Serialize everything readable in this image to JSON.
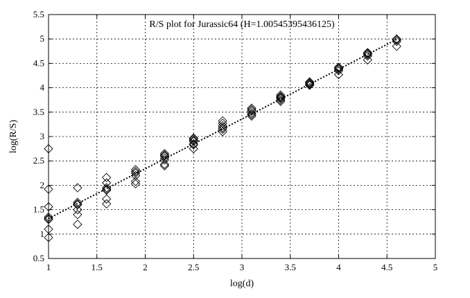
{
  "chart_data": {
    "type": "scatter",
    "title": "R/S plot for Jurassic64 (H=1.00545395436125)",
    "xlabel": "log(d)",
    "ylabel": "log(R/S)",
    "xlim": [
      1,
      5
    ],
    "ylim": [
      0.5,
      5.5
    ],
    "xticks": [
      1,
      1.5,
      2,
      2.5,
      3,
      3.5,
      4,
      4.5,
      5
    ],
    "yticks": [
      0.5,
      1,
      1.5,
      2,
      2.5,
      3,
      3.5,
      4,
      4.5,
      5,
      5.5
    ],
    "grid": true,
    "legend": "none",
    "colors": {
      "marker": "#000000",
      "line": "#000000",
      "grid": "#000000"
    },
    "series": [
      {
        "marker": "diamond-open",
        "points": [
          [
            1.0,
            2.75
          ],
          [
            1.0,
            1.92
          ],
          [
            1.0,
            1.56
          ],
          [
            1.0,
            1.35
          ],
          [
            1.0,
            1.32
          ],
          [
            1.0,
            1.3
          ],
          [
            1.0,
            1.1
          ],
          [
            1.0,
            0.93
          ],
          [
            1.3,
            1.95
          ],
          [
            1.3,
            1.65
          ],
          [
            1.3,
            1.62
          ],
          [
            1.3,
            1.6
          ],
          [
            1.3,
            1.5
          ],
          [
            1.3,
            1.4
          ],
          [
            1.3,
            1.2
          ],
          [
            1.6,
            2.16
          ],
          [
            1.6,
            2.05
          ],
          [
            1.6,
            1.95
          ],
          [
            1.6,
            1.92
          ],
          [
            1.6,
            1.9
          ],
          [
            1.6,
            1.72
          ],
          [
            1.6,
            1.62
          ],
          [
            1.9,
            2.32
          ],
          [
            1.9,
            2.28
          ],
          [
            1.9,
            2.25
          ],
          [
            1.9,
            2.2
          ],
          [
            1.9,
            2.08
          ],
          [
            1.9,
            2.03
          ],
          [
            2.2,
            2.65
          ],
          [
            2.2,
            2.62
          ],
          [
            2.2,
            2.6
          ],
          [
            2.2,
            2.56
          ],
          [
            2.2,
            2.52
          ],
          [
            2.2,
            2.43
          ],
          [
            2.2,
            2.4
          ],
          [
            2.5,
            2.97
          ],
          [
            2.5,
            2.95
          ],
          [
            2.5,
            2.92
          ],
          [
            2.5,
            2.9
          ],
          [
            2.5,
            2.85
          ],
          [
            2.5,
            2.83
          ],
          [
            2.5,
            2.75
          ],
          [
            2.8,
            3.32
          ],
          [
            2.8,
            3.27
          ],
          [
            2.8,
            3.22
          ],
          [
            2.8,
            3.18
          ],
          [
            2.8,
            3.15
          ],
          [
            2.8,
            3.1
          ],
          [
            3.1,
            3.58
          ],
          [
            3.1,
            3.55
          ],
          [
            3.1,
            3.52
          ],
          [
            3.1,
            3.48
          ],
          [
            3.1,
            3.45
          ],
          [
            3.1,
            3.42
          ],
          [
            3.4,
            3.85
          ],
          [
            3.4,
            3.82
          ],
          [
            3.4,
            3.8
          ],
          [
            3.4,
            3.78
          ],
          [
            3.4,
            3.75
          ],
          [
            3.4,
            3.72
          ],
          [
            3.7,
            4.12
          ],
          [
            3.7,
            4.1
          ],
          [
            3.7,
            4.08
          ],
          [
            3.7,
            4.06
          ],
          [
            3.7,
            4.05
          ],
          [
            4.0,
            4.42
          ],
          [
            4.0,
            4.4
          ],
          [
            4.0,
            4.38
          ],
          [
            4.0,
            4.35
          ],
          [
            4.0,
            4.27
          ],
          [
            4.3,
            4.72
          ],
          [
            4.3,
            4.7
          ],
          [
            4.3,
            4.68
          ],
          [
            4.3,
            4.65
          ],
          [
            4.3,
            4.57
          ],
          [
            4.6,
            5.0
          ],
          [
            4.6,
            4.98
          ],
          [
            4.6,
            4.95
          ],
          [
            4.6,
            4.85
          ]
        ]
      }
    ],
    "fit_line": {
      "style": "dotted",
      "x": [
        1.0,
        4.6
      ],
      "y": [
        1.32,
        4.99
      ]
    }
  }
}
